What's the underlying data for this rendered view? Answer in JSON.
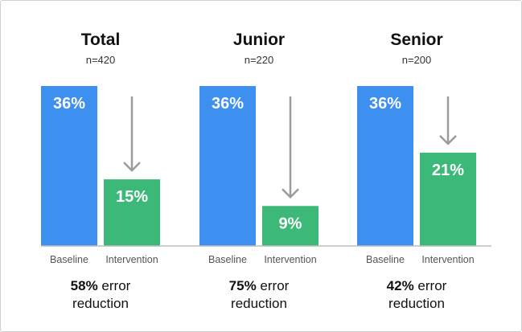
{
  "chart_data": {
    "type": "bar",
    "ylim": [
      0,
      36
    ],
    "categories": [
      "Baseline",
      "Intervention"
    ],
    "colors": {
      "baseline": "#3d8ff0",
      "intervention": "#3cb878",
      "arrow": "#9b9b9b",
      "axis": "#bdbdbd"
    },
    "panels": [
      {
        "title": "Total",
        "n_label": "n=420",
        "values": [
          36,
          15
        ],
        "value_labels": [
          "36%",
          "15%"
        ],
        "summary_pct": "58%",
        "summary_line1": " error",
        "summary_line2": "reduction"
      },
      {
        "title": "Junior",
        "n_label": "n=220",
        "values": [
          36,
          9
        ],
        "value_labels": [
          "36%",
          "9%"
        ],
        "summary_pct": "75%",
        "summary_line1": " error",
        "summary_line2": "reduction"
      },
      {
        "title": "Senior",
        "n_label": "n=200",
        "values": [
          36,
          21
        ],
        "value_labels": [
          "36%",
          "21%"
        ],
        "summary_pct": "42%",
        "summary_line1": " error",
        "summary_line2": "reduction"
      }
    ]
  }
}
